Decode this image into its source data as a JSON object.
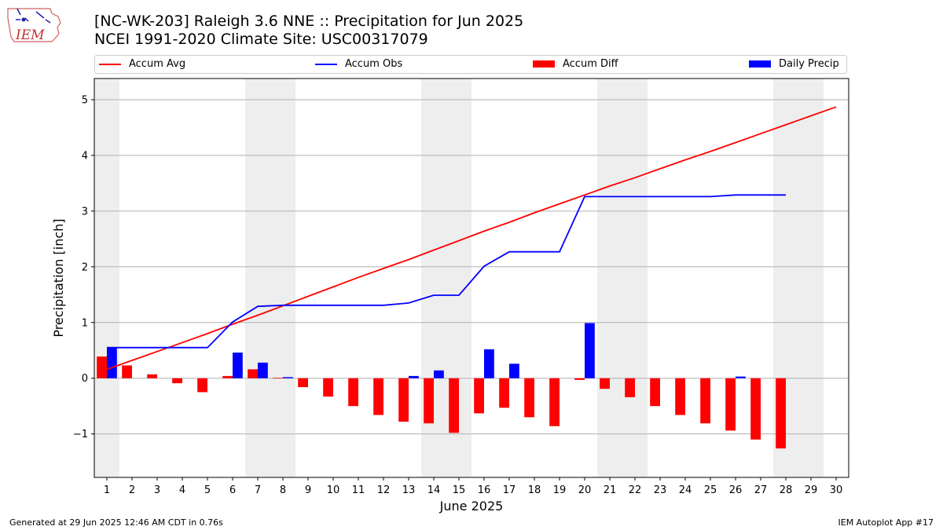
{
  "header": {
    "title_line1": "[NC-WK-203] Raleigh 3.6 NNE :: Precipitation for Jun 2025",
    "title_line2": "NCEI 1991-2020 Climate Site: USC00317079"
  },
  "logo": {
    "text": "IEM"
  },
  "footer": {
    "generated": "Generated at 29 Jun 2025 12:46 AM CDT in 0.76s",
    "app": "IEM Autoplot App #17"
  },
  "legend": {
    "accum_avg": "Accum Avg",
    "accum_obs": "Accum Obs",
    "accum_diff": "Accum Diff",
    "daily_precip": "Daily Precip"
  },
  "colors": {
    "avg": "#ff0000",
    "obs": "#0000ff",
    "diff": "#ff0000",
    "daily": "#0000ff",
    "weekend": "#eeeeee",
    "grid": "#b0b0b0"
  },
  "chart_data": {
    "type": "bar",
    "xlabel": "June 2025",
    "ylabel": "Precipitation [inch]",
    "xlim": [
      0.5,
      30.5
    ],
    "ylim": [
      -1.78,
      5.38
    ],
    "yticks": [
      -1,
      0,
      1,
      2,
      3,
      4,
      5
    ],
    "ytick_labels": [
      "−1",
      "0",
      "1",
      "2",
      "3",
      "4",
      "5"
    ],
    "grid": "y",
    "legend_placement": "top",
    "days": [
      1,
      2,
      3,
      4,
      5,
      6,
      7,
      8,
      9,
      10,
      11,
      12,
      13,
      14,
      15,
      16,
      17,
      18,
      19,
      20,
      21,
      22,
      23,
      24,
      25,
      26,
      27,
      28,
      29,
      30
    ],
    "weekend_days": [
      1,
      7,
      8,
      14,
      15,
      21,
      22,
      28,
      29
    ],
    "series": [
      {
        "name": "Accum Avg",
        "kind": "line",
        "values": [
          0.16,
          0.32,
          0.48,
          0.64,
          0.8,
          0.97,
          1.13,
          1.3,
          1.47,
          1.64,
          1.81,
          1.97,
          2.13,
          2.3,
          2.47,
          2.64,
          2.8,
          2.97,
          3.13,
          3.29,
          3.45,
          3.6,
          3.76,
          3.92,
          4.07,
          4.23,
          4.39,
          4.55,
          4.71,
          4.87
        ]
      },
      {
        "name": "Accum Obs",
        "kind": "line",
        "values": [
          0.55,
          0.55,
          0.55,
          0.55,
          0.55,
          1.01,
          1.29,
          1.31,
          1.31,
          1.31,
          1.31,
          1.31,
          1.35,
          1.49,
          1.49,
          2.01,
          2.27,
          2.27,
          2.27,
          3.26,
          3.26,
          3.26,
          3.26,
          3.26,
          3.26,
          3.29,
          3.29,
          3.29,
          null,
          null
        ]
      },
      {
        "name": "Accum Diff",
        "kind": "bar",
        "values": [
          0.39,
          0.23,
          0.07,
          -0.09,
          -0.25,
          0.04,
          0.16,
          0.01,
          -0.16,
          -0.33,
          -0.5,
          -0.66,
          -0.78,
          -0.81,
          -0.98,
          -0.63,
          -0.53,
          -0.7,
          -0.86,
          -0.03,
          -0.19,
          -0.34,
          -0.5,
          -0.66,
          -0.81,
          -0.94,
          -1.1,
          -1.26,
          null,
          null
        ]
      },
      {
        "name": "Daily Precip",
        "kind": "bar",
        "values": [
          0.55,
          0,
          0,
          0,
          0,
          0.46,
          0.28,
          0.02,
          0,
          0,
          0,
          0,
          0.04,
          0.14,
          0,
          0.52,
          0.26,
          0,
          0,
          0.99,
          0,
          0,
          0,
          0,
          0,
          0.03,
          0,
          0,
          null,
          null
        ]
      }
    ]
  }
}
